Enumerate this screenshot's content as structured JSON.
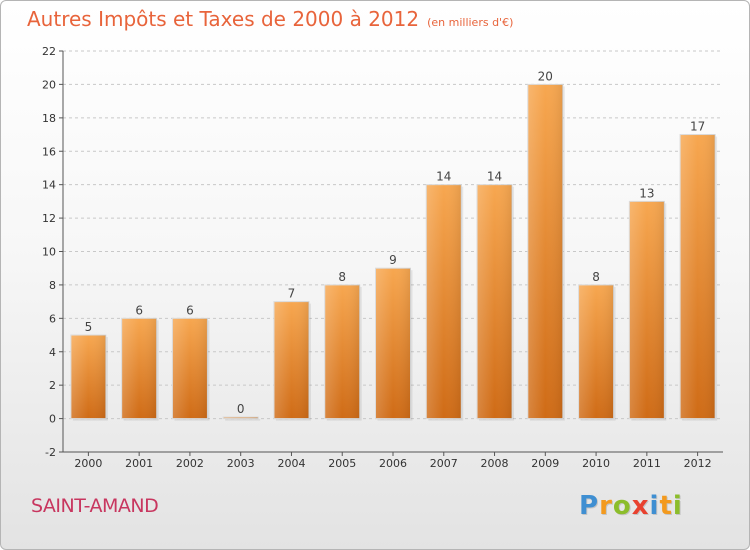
{
  "chart_data": {
    "type": "bar",
    "title": "Autres Impôts et Taxes de 2000 à 2012",
    "subtitle": "(en milliers d'€)",
    "xlabel": "",
    "ylabel": "",
    "categories": [
      "2000",
      "2001",
      "2002",
      "2003",
      "2004",
      "2005",
      "2006",
      "2007",
      "2008",
      "2009",
      "2010",
      "2011",
      "2012"
    ],
    "values": [
      5,
      6,
      6,
      0,
      7,
      8,
      9,
      14,
      14,
      20,
      8,
      13,
      17
    ],
    "ylim": [
      -2,
      22
    ],
    "yticks": [
      -2,
      0,
      2,
      4,
      6,
      8,
      10,
      12,
      14,
      16,
      18,
      20,
      22
    ],
    "grid": true,
    "colors": {
      "bar_top": "#f7a750",
      "bar_bottom": "#cf6b16",
      "title": "#e8643b"
    }
  },
  "footer": {
    "town": "SAINT-AMAND",
    "logo": {
      "letters": [
        "P",
        "r",
        "o",
        "x",
        "i",
        "t",
        "i"
      ],
      "colors": [
        "#3f8fd2",
        "#f39a1e",
        "#8cbd2b",
        "#e8412f",
        "#3f8fd2",
        "#f39a1e",
        "#8cbd2b"
      ]
    }
  }
}
